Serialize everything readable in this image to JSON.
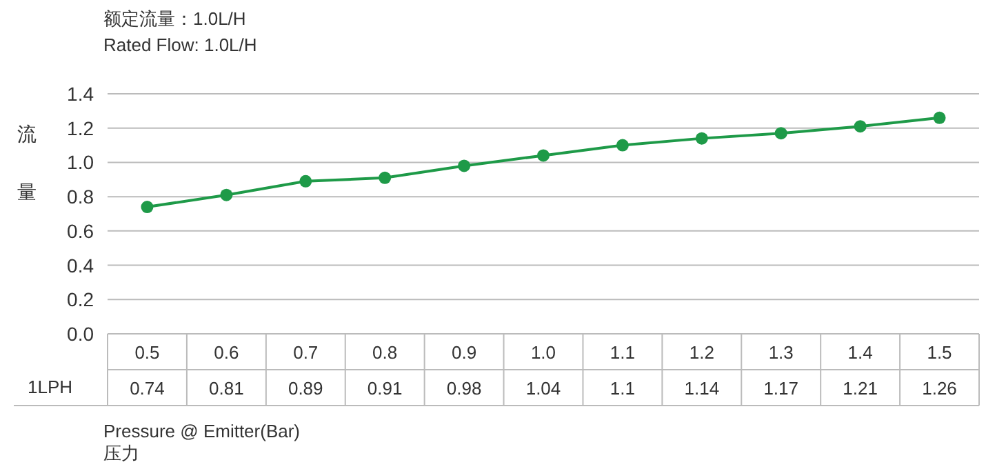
{
  "chart_data": {
    "type": "line",
    "title": "额定流量：1.0L/H",
    "subtitle": "Rated Flow: 1.0L/H",
    "ylabel": "流量",
    "xlabel": "Pressure @ Emitter(Bar)",
    "annotations": [
      "压力"
    ],
    "categories": [
      "0.5",
      "0.6",
      "0.7",
      "0.8",
      "0.9",
      "1.0",
      "1.1",
      "1.2",
      "1.3",
      "1.4",
      "1.5"
    ],
    "series": [
      {
        "name": "1LPH",
        "color": "#1e9a48",
        "values": [
          0.74,
          0.81,
          0.89,
          0.91,
          0.98,
          1.04,
          1.1,
          1.14,
          1.17,
          1.21,
          1.26
        ]
      }
    ],
    "ylim": [
      0,
      1.4
    ],
    "yticks": [
      {
        "value": 0,
        "label": "0.0"
      },
      0.2,
      0.4,
      0.6,
      0.8,
      {
        "value": 1,
        "label": "1.0"
      },
      1.2,
      1.4
    ],
    "grid": "y",
    "marker": "circle",
    "line_style": "solid",
    "data_labels": true
  }
}
